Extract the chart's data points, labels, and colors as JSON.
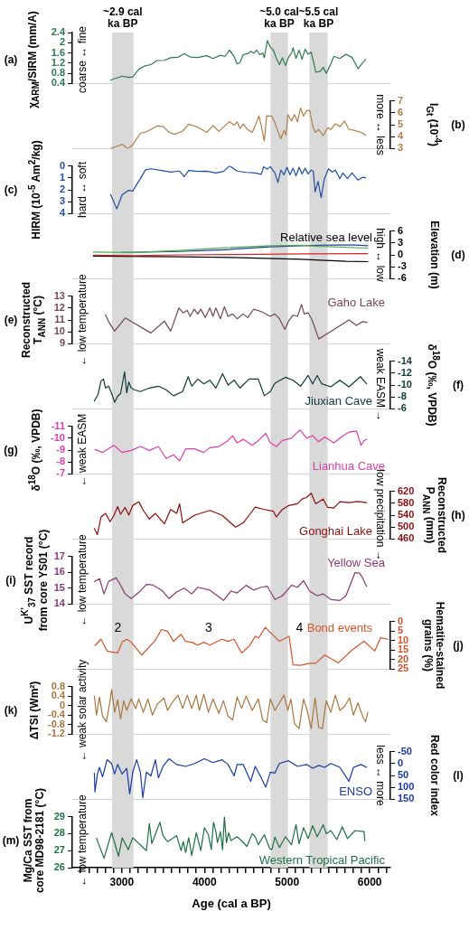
{
  "chart_data": [
    {
      "type": "line",
      "xlim": [
        2400,
        6250
      ],
      "tick_labels": "y",
      "ylabel": "χ$_{ARM}$/SIRM (mm/A)",
      "annotations": [
        "(a)",
        "coarse ↔ fine"
      ],
      "ylim": [
        0.4,
        2.4
      ],
      "yticks": [
        0.4,
        0.8,
        1.2,
        1.6,
        2,
        2.4
      ],
      "bands": [
        {
          "axis": "x",
          "from": 2880,
          "to": 3140,
          "label": "~2.9 cal ka BP",
          "color": "#d9d9d9"
        },
        {
          "axis": "x",
          "from": 4800,
          "to": 5010,
          "label": "~5.0 cal ka BP",
          "color": "#d9d9d9"
        },
        {
          "axis": "x",
          "from": 5270,
          "to": 5490,
          "label": "~5.5 cal ka BP",
          "color": "#d9d9d9"
        }
      ],
      "series": [
        {
          "color": "#2a7a50",
          "x": [
            2865,
            3004,
            3077,
            3132,
            3205,
            3278,
            3351,
            3425,
            3516,
            3590,
            3680,
            3754,
            3827,
            3919,
            4028,
            4102,
            4193,
            4248,
            4303,
            4358,
            4395,
            4431,
            4468,
            4523,
            4559,
            4596,
            4633,
            4669,
            4706,
            4724,
            4761,
            4797,
            4834,
            4870,
            4907,
            4943,
            4980,
            5017,
            5053,
            5072,
            5108,
            5145,
            5181,
            5218,
            5254,
            5291,
            5327,
            5346,
            5401,
            5437,
            5474,
            5529,
            5566,
            5639,
            5712,
            5785,
            5858,
            5895,
            5950
          ],
          "values": [
            0.54,
            0.69,
            0.64,
            0.66,
            0.96,
            1.09,
            1.14,
            1.3,
            1.31,
            1.41,
            1.43,
            1.57,
            1.44,
            1.42,
            1.49,
            1.38,
            1.51,
            1.46,
            1.71,
            1.46,
            1.17,
            1.23,
            1.53,
            1.57,
            1.66,
            1.59,
            1.71,
            1.53,
            1.59,
            1.41,
            2.09,
            1.83,
            1.71,
            1.39,
            1.14,
            1.41,
            1.11,
            1.43,
            1.59,
            1.8,
            1.39,
            1.71,
            1.35,
            1.75,
            1.55,
            1.63,
            1.15,
            0.84,
            0.88,
            1.03,
            0.8,
            1.17,
            1.47,
            1.38,
            1.55,
            1.43,
            0.98,
            1.14,
            1.34
          ]
        }
      ]
    },
    {
      "type": "line",
      "xlim": [
        2400,
        6250
      ],
      "tick_labels": "y2",
      "y2label": "I$_{Gt}$ (10$^{-4}$)",
      "annotations": [
        "(b)",
        "more ↔ less"
      ],
      "y2lim": [
        3,
        7
      ],
      "y2ticks": [
        3,
        4,
        5,
        6,
        7
      ],
      "bands": [
        {
          "axis": "x",
          "from": 2880,
          "to": 3140,
          "color": "#d9d9d9"
        },
        {
          "axis": "x",
          "from": 4800,
          "to": 5010,
          "color": "#d9d9d9"
        },
        {
          "axis": "x",
          "from": 5270,
          "to": 5490,
          "color": "#d9d9d9"
        }
      ],
      "series": [
        {
          "color": "#b07d45",
          "axis": "y2",
          "x": [
            2865,
            3004,
            3070,
            3132,
            3224,
            3297,
            3425,
            3498,
            3571,
            3644,
            3736,
            3809,
            3919,
            4028,
            4102,
            4175,
            4303,
            4358,
            4395,
            4431,
            4468,
            4523,
            4578,
            4633,
            4658,
            4687,
            4724,
            4753,
            4816,
            4852,
            4889,
            4925,
            4962,
            4987,
            5009,
            5053,
            5090,
            5126,
            5163,
            5199,
            5236,
            5273,
            5309,
            5339,
            5382,
            5437,
            5492,
            5529,
            5584,
            5639,
            5694,
            5749,
            5822,
            5895,
            5950
          ],
          "values": [
            3.0,
            3.35,
            3.0,
            3.32,
            4.28,
            4.41,
            4.89,
            4.86,
            4.36,
            4.2,
            4.47,
            5.05,
            4.79,
            4.36,
            4.92,
            4.44,
            5.27,
            4.95,
            5.24,
            4.68,
            5.05,
            4.6,
            4.36,
            5.24,
            5.75,
            4.92,
            3.64,
            5.75,
            5.72,
            5.16,
            4.44,
            3.83,
            4.52,
            4.12,
            5.85,
            5.32,
            5.85,
            5.24,
            6.39,
            5.72,
            6.17,
            6.2,
            4.92,
            4.36,
            4.6,
            4.09,
            4.76,
            4.6,
            5.08,
            4.84,
            5.32,
            4.6,
            4.52,
            4.36,
            4.12
          ]
        }
      ]
    },
    {
      "type": "line",
      "xlim": [
        2400,
        6250
      ],
      "tick_labels": "y",
      "ylabel": "HIRM (10$^{-5}$ Am$^{2}$/kg)",
      "annotations": [
        "(c)",
        "hard ↔ soft"
      ],
      "ylim": [
        4,
        0
      ],
      "yticks": [
        0,
        1,
        2,
        3,
        4
      ],
      "bands": [
        {
          "axis": "x",
          "from": 2880,
          "to": 3140,
          "color": "#d9d9d9"
        },
        {
          "axis": "x",
          "from": 4800,
          "to": 5010,
          "color": "#d9d9d9"
        },
        {
          "axis": "x",
          "from": 5270,
          "to": 5490,
          "color": "#d9d9d9"
        }
      ],
      "series": [
        {
          "color": "#1f4fa0",
          "x": [
            2865,
            2938,
            3004,
            3077,
            3132,
            3224,
            3286,
            3351,
            3480,
            3590,
            3699,
            3754,
            3809,
            3919,
            4028,
            4138,
            4230,
            4303,
            4395,
            4504,
            4614,
            4687,
            4717,
            4761,
            4797,
            4852,
            4889,
            4925,
            4962,
            4998,
            5035,
            5072,
            5108,
            5145,
            5181,
            5218,
            5254,
            5291,
            5317,
            5339,
            5375,
            5412,
            5449,
            5500,
            5547,
            5584,
            5639,
            5675,
            5730,
            5785,
            5858,
            5913,
            5950
          ],
          "values": [
            2.41,
            3.6,
            2.41,
            2.05,
            2.1,
            1.06,
            0.32,
            0.24,
            0.38,
            0.51,
            0.43,
            0.9,
            0.38,
            0.46,
            0.44,
            0.59,
            0.46,
            0,
            0.43,
            0.54,
            0.59,
            0.7,
            0.06,
            0.27,
            0.06,
            0.59,
            1.38,
            0.35,
            0.75,
            0.11,
            0.75,
            0.19,
            0.83,
            0.11,
            0.67,
            0.19,
            0.67,
            0.35,
            0.43,
            2.17,
            1.3,
            2.65,
            1.14,
            0.24,
            0.51,
            0.35,
            1.06,
            0.59,
            1.06,
            0.59,
            1.19,
            0.95,
            0.98
          ]
        }
      ]
    },
    {
      "type": "line",
      "xlim": [
        2400,
        6250
      ],
      "tick_labels": "y2",
      "y2label": "Elevation (m)",
      "annotations": [
        "(d)",
        "high ↔ low"
      ],
      "legend_title": "Relative sea level",
      "y2lim": [
        -6,
        6
      ],
      "y2ticks": [
        -6,
        -3,
        0,
        3,
        6
      ],
      "bands": [
        {
          "axis": "x",
          "from": 2880,
          "to": 3140,
          "color": "#d9d9d9"
        },
        {
          "axis": "x",
          "from": 4800,
          "to": 5010,
          "color": "#d9d9d9"
        },
        {
          "axis": "x",
          "from": 5270,
          "to": 5490,
          "color": "#d9d9d9"
        }
      ],
      "series": [
        {
          "color": "#4caf50",
          "axis": "y2",
          "x": [
            2656,
            3150,
            3699,
            4248,
            4797,
            5163,
            5346,
            5976
          ],
          "values": [
            0.7,
            0.6,
            1.1,
            1.8,
            2.3,
            2.4,
            2.2,
            1.7
          ]
        },
        {
          "color": "#1f3f99",
          "axis": "y2",
          "x": [
            3004,
            3699,
            4248,
            4797,
            5163,
            5529,
            5822,
            5976
          ],
          "values": [
            0.6,
            0.85,
            1.3,
            2.0,
            2.3,
            2.5,
            2.45,
            2.3
          ]
        },
        {
          "color": "#d62728",
          "axis": "y2",
          "x": [
            2656,
            3150,
            3699,
            4431,
            5163,
            5976
          ],
          "values": [
            -0.1,
            -0.2,
            0,
            0.1,
            0.25,
            0.3
          ]
        },
        {
          "color": "#000000",
          "axis": "y2",
          "x": [
            2656,
            3699,
            4431,
            5163,
            5712,
            5976
          ],
          "values": [
            -0.3,
            -0.5,
            -0.7,
            -1.1,
            -1.6,
            -1.7
          ]
        }
      ]
    },
    {
      "type": "line",
      "xlim": [
        2400,
        6250
      ],
      "tick_labels": "y",
      "ylabel": "Reconstructed\nT$_{ANN}$ (°C)",
      "annotations": [
        "(e)",
        "← low temperature"
      ],
      "ylim": [
        9,
        13
      ],
      "yticks": [
        9,
        10,
        11,
        12,
        13
      ],
      "bands": [
        {
          "axis": "x",
          "from": 2880,
          "to": 3140,
          "color": "#d9d9d9"
        },
        {
          "axis": "x",
          "from": 4800,
          "to": 5010,
          "color": "#d9d9d9"
        },
        {
          "axis": "x",
          "from": 5270,
          "to": 5490,
          "color": "#d9d9d9"
        }
      ],
      "series": [
        {
          "name": "Gaho Lake",
          "color": "#74484f",
          "x": [
            2802,
            2839,
            2912,
            3040,
            3351,
            3516,
            3590,
            3691,
            3743,
            3791,
            3827,
            3875,
            3919,
            3955,
            4010,
            4065,
            4102,
            4138,
            4193,
            4241,
            4285,
            4340,
            4395,
            4468,
            4523,
            4596,
            4687,
            4797,
            4852,
            4907,
            4973,
            5017,
            5072,
            5126,
            5174,
            5207,
            5254,
            5302,
            5383,
            5511,
            5749,
            5840,
            5913,
            5968
          ],
          "values": [
            11.43,
            10.86,
            10.06,
            11.17,
            9.91,
            10.9,
            10.06,
            12.0,
            11.6,
            11.8,
            11.3,
            11.9,
            11.5,
            11.9,
            11.2,
            12.0,
            11.3,
            12.0,
            11.1,
            12.1,
            11.3,
            11.5,
            11.1,
            11.5,
            11.2,
            11.9,
            11.7,
            11.3,
            11.5,
            11.1,
            10.2,
            10.9,
            11.4,
            11.3,
            12.3,
            11.5,
            11.6,
            11.0,
            9.4,
            9.96,
            11.0,
            10.54,
            10.86,
            10.8
          ]
        }
      ]
    },
    {
      "type": "line",
      "xlim": [
        2400,
        6250
      ],
      "tick_labels": "y2",
      "y2label": "δ$^{18}$O (‰, VPDB)",
      "annotations": [
        "(f)",
        "weak EASM →"
      ],
      "y2lim": [
        -6,
        -14
      ],
      "y2ticks": [
        -14,
        -12,
        -10,
        -8,
        -6
      ],
      "bands": [
        {
          "axis": "x",
          "from": 2880,
          "to": 3140,
          "color": "#d9d9d9"
        },
        {
          "axis": "x",
          "from": 4800,
          "to": 5010,
          "color": "#d9d9d9"
        },
        {
          "axis": "x",
          "from": 5270,
          "to": 5490,
          "color": "#d9d9d9"
        }
      ],
      "series": [
        {
          "name": "Jiuxian Cave",
          "color": "#0f3b36",
          "axis": "y2",
          "x": [
            2667,
            2711,
            2748,
            2777,
            2802,
            2839,
            2876,
            2912,
            2949,
            2985,
            3033,
            3059,
            3084,
            3113,
            3150,
            3224,
            3333,
            3443,
            3535,
            3626,
            3736,
            3802,
            3846,
            3919,
            3992,
            4065,
            4138,
            4219,
            4285,
            4358,
            4431,
            4541,
            4651,
            4724,
            4797,
            4852,
            4980,
            5072,
            5163,
            5254,
            5309,
            5364,
            5419,
            5529,
            5639,
            5749,
            5888,
            5961
          ],
          "values": [
            -7.3,
            -8.4,
            -10.7,
            -11.0,
            -9.5,
            -9.8,
            -8.6,
            -7.1,
            -8.1,
            -8.6,
            -12.2,
            -8.7,
            -10.5,
            -9.5,
            -9.2,
            -8.9,
            -9.5,
            -9.8,
            -9.2,
            -8.2,
            -8.9,
            -11.4,
            -9.8,
            -11.0,
            -10.2,
            -10.8,
            -9.5,
            -11.9,
            -10.0,
            -10.8,
            -9.5,
            -11.0,
            -11.0,
            -8.2,
            -8.9,
            -10.3,
            -11.3,
            -10.8,
            -9.8,
            -11.6,
            -10.2,
            -11.6,
            -10.2,
            -9.7,
            -10.8,
            -9.7,
            -11.4,
            -10.2
          ]
        }
      ]
    },
    {
      "type": "line",
      "xlim": [
        2400,
        6250
      ],
      "tick_labels": "y",
      "ylabel": "δ$^{18}$O (‰, VPDB)",
      "annotations": [
        "(g)",
        "← weak EASM"
      ],
      "ylim": [
        -7,
        -11
      ],
      "yticks": [
        -11,
        -10,
        -9,
        -8,
        -7
      ],
      "bands": [
        {
          "axis": "x",
          "from": 2880,
          "to": 3140,
          "color": "#d9d9d9"
        },
        {
          "axis": "x",
          "from": 4800,
          "to": 5010,
          "color": "#d9d9d9"
        },
        {
          "axis": "x",
          "from": 5270,
          "to": 5490,
          "color": "#d9d9d9"
        }
      ],
      "series": [
        {
          "name": "Lianhua Cave",
          "color": "#d83fae",
          "x": [
            2674,
            2766,
            2901,
            3004,
            3113,
            3224,
            3333,
            3443,
            3535,
            3626,
            3699,
            3772,
            3882,
            3992,
            4065,
            4175,
            4285,
            4340,
            4395,
            4468,
            4578,
            4651,
            4742,
            4797,
            4870,
            4943,
            5053,
            5156,
            5236,
            5309,
            5382,
            5456,
            5566,
            5675,
            5749,
            5840,
            5895,
            5932,
            5961
          ],
          "values": [
            -9.05,
            -8.8,
            -9.4,
            -8.8,
            -8.97,
            -9.3,
            -8.97,
            -9.3,
            -8.3,
            -8.6,
            -8.1,
            -9.1,
            -9.1,
            -8.8,
            -9.2,
            -9.3,
            -9.8,
            -10.2,
            -9.6,
            -9.9,
            -9.4,
            -9.8,
            -10.4,
            -9.6,
            -9.3,
            -9.8,
            -10.0,
            -10.7,
            -10.0,
            -10.2,
            -9.7,
            -10.1,
            -9.6,
            -10.2,
            -10.5,
            -10.6,
            -9.4,
            -9.8,
            -9.9
          ]
        }
      ]
    },
    {
      "type": "line",
      "xlim": [
        2400,
        6250
      ],
      "tick_labels": "y2",
      "y2label": "Reconstructed\nP$_{ANN}$ (mm)",
      "annotations": [
        "(h)",
        "low precipitation →"
      ],
      "y2lim": [
        460,
        620
      ],
      "y2ticks": [
        460,
        500,
        540,
        580,
        620
      ],
      "bands": [
        {
          "axis": "x",
          "from": 2880,
          "to": 3140,
          "color": "#d9d9d9"
        },
        {
          "axis": "x",
          "from": 4800,
          "to": 5010,
          "color": "#d9d9d9"
        },
        {
          "axis": "x",
          "from": 5270,
          "to": 5490,
          "color": "#d9d9d9"
        }
      ],
      "series": [
        {
          "name": "Gonghai Lake",
          "color": "#8b0f0f",
          "axis": "y2",
          "x": [
            2667,
            2704,
            2748,
            2802,
            2857,
            2901,
            2949,
            2985,
            3040,
            3084,
            3132,
            3205,
            3260,
            3333,
            3406,
            3516,
            3590,
            3663,
            3699,
            3736,
            3882,
            4065,
            4211,
            4376,
            4468,
            4541,
            4614,
            4724,
            4834,
            4870,
            4943,
            5017,
            5126,
            5181,
            5236,
            5291,
            5346,
            5437,
            5492,
            5566,
            5639,
            5749,
            5858,
            5961
          ],
          "values": [
            495,
            475,
            534,
            546,
            518,
            537,
            569,
            543,
            566,
            540,
            573,
            585,
            556,
            527,
            546,
            511,
            559,
            546,
            578,
            514,
            540,
            556,
            540,
            500,
            514,
            540,
            567,
            559,
            553,
            534,
            559,
            572,
            578,
            594,
            599,
            614,
            578,
            594,
            566,
            564,
            585,
            582,
            586,
            582
          ]
        }
      ]
    },
    {
      "type": "line",
      "xlim": [
        2400,
        6250
      ],
      "tick_labels": "y",
      "ylabel": "U$^{K'}$$_{37}$ SST record\nfrom core YS01 (°C)",
      "annotations": [
        "(i)",
        "← low temperature"
      ],
      "ylim": [
        14,
        17
      ],
      "yticks": [
        14,
        15,
        16,
        17
      ],
      "bands": [
        {
          "axis": "x",
          "from": 2880,
          "to": 3140,
          "color": "#d9d9d9"
        },
        {
          "axis": "x",
          "from": 4800,
          "to": 5010,
          "color": "#d9d9d9"
        },
        {
          "axis": "x",
          "from": 5270,
          "to": 5490,
          "color": "#d9d9d9"
        }
      ],
      "series": [
        {
          "name": "Yellow Sea",
          "color": "#8a3a70",
          "x": [
            2667,
            2729,
            2784,
            2839,
            2930,
            2967,
            3040,
            3113,
            3224,
            3297,
            3370,
            3480,
            3571,
            3663,
            3754,
            3846,
            3919,
            4065,
            4230,
            4321,
            4395,
            4504,
            4596,
            4687,
            4761,
            4852,
            4943,
            5053,
            5126,
            5199,
            5273,
            5364,
            5437,
            5529,
            5639,
            5712,
            5822,
            5877,
            5913,
            5961
          ],
          "values": [
            15.42,
            15.6,
            14.64,
            15.42,
            15.65,
            15.36,
            14.64,
            14.35,
            14.82,
            15.24,
            15.21,
            14.88,
            14.35,
            14.76,
            15.0,
            14.64,
            15.06,
            14.88,
            14.23,
            14.82,
            14.7,
            15.18,
            14.88,
            15.06,
            15.12,
            14.29,
            14.52,
            15.18,
            15.06,
            15.48,
            14.82,
            14.52,
            14.64,
            14.29,
            14.23,
            14.52,
            15.98,
            15.95,
            15.65,
            15.12
          ]
        }
      ]
    },
    {
      "type": "line",
      "xlim": [
        2400,
        6250
      ],
      "tick_labels": "y2",
      "y2label": "Hematite-stained\ngrains (%)",
      "annotations": [
        "(j)",
        "2",
        "3",
        "4"
      ],
      "y2lim": [
        25,
        0
      ],
      "y2ticks": [
        0,
        5,
        10,
        15,
        20,
        25
      ],
      "bands": [
        {
          "axis": "x",
          "from": 2880,
          "to": 3140,
          "color": "#d9d9d9"
        },
        {
          "axis": "x",
          "from": 4800,
          "to": 5010,
          "color": "#d9d9d9"
        },
        {
          "axis": "x",
          "from": 5270,
          "to": 5490,
          "color": "#d9d9d9"
        }
      ],
      "series": [
        {
          "name": "Bond events",
          "color": "#d2552a",
          "axis": "y2",
          "x": [
            2674,
            2748,
            2821,
            2876,
            2949,
            3004,
            3059,
            3113,
            3242,
            3406,
            3480,
            3553,
            3626,
            3717,
            3772,
            3846,
            3919,
            3992,
            4065,
            4211,
            4285,
            4358,
            4450,
            4541,
            4614,
            4658,
            4735,
            4907,
            5024,
            5072,
            5163,
            5273,
            5346,
            5456,
            5621,
            5785,
            5932,
            6060,
            6133,
            6225
          ],
          "values": [
            12.6,
            9.3,
            15.5,
            16.0,
            16.5,
            10.9,
            9.3,
            10.9,
            17.6,
            9.8,
            4.2,
            5.2,
            10.4,
            6.8,
            10.4,
            10.9,
            12.4,
            10.9,
            12.4,
            9.3,
            10.4,
            9.3,
            16.5,
            12.9,
            7.8,
            8.6,
            3.1,
            10.4,
            7.8,
            22.7,
            23.0,
            21.9,
            21.9,
            17.6,
            21.7,
            15.0,
            10.4,
            15.5,
            8.5,
            9.3
          ]
        }
      ]
    },
    {
      "type": "line",
      "xlim": [
        2400,
        6250
      ],
      "tick_labels": "y",
      "ylabel": "ΔTSI (Wm²)",
      "annotations": [
        "(k)",
        "← weak solar activity"
      ],
      "ylim": [
        -1.2,
        0.8
      ],
      "yticks": [
        -1.2,
        -0.8,
        -0.4,
        0,
        0.4,
        0.8
      ],
      "bands": [
        {
          "axis": "x",
          "from": 2880,
          "to": 3140,
          "color": "#d9d9d9"
        },
        {
          "axis": "x",
          "from": 4800,
          "to": 5010,
          "color": "#d9d9d9"
        },
        {
          "axis": "x",
          "from": 5270,
          "to": 5490,
          "color": "#d9d9d9"
        }
      ],
      "series": [
        {
          "color": "#a8763e",
          "x": [
            2667,
            2693,
            2729,
            2766,
            2813,
            2850,
            2876,
            2912,
            2949,
            2985,
            3022,
            3059,
            3113,
            3168,
            3205,
            3260,
            3315,
            3370,
            3425,
            3509,
            3553,
            3608,
            3680,
            3736,
            3791,
            3846,
            3901,
            3937,
            3992,
            4047,
            4102,
            4175,
            4230,
            4285,
            4340,
            4395,
            4450,
            4504,
            4578,
            4651,
            4706,
            4753,
            4797,
            4852,
            4907,
            4962,
            5009,
            5046,
            5090,
            5145,
            5199,
            5243,
            5291,
            5339,
            5383,
            5426,
            5474,
            5529,
            5584,
            5639,
            5694,
            5756,
            5803,
            5858,
            5913,
            5950,
            5976
          ],
          "values": [
            0.4,
            -0.4,
            0.36,
            -0.44,
            -0.68,
            0.04,
            0.68,
            -0.28,
            0.24,
            -0.56,
            0.2,
            -0.2,
            0.28,
            -0.12,
            0.28,
            -0.28,
            0.28,
            -0.4,
            0.04,
            0.32,
            -0.2,
            0.12,
            0.44,
            -0.12,
            0.44,
            -0.12,
            0.44,
            -0.2,
            0.48,
            -0.28,
            0.28,
            -0.32,
            0.2,
            -0.44,
            -0.6,
            0.36,
            -0.12,
            0.4,
            -0.2,
            0.28,
            -0.6,
            -0.72,
            0.28,
            -0.2,
            0.12,
            0.44,
            -0.2,
            0.28,
            -0.76,
            -0.96,
            0.28,
            -0.2,
            -0.96,
            0.32,
            -0.92,
            -0.96,
            0.2,
            -0.28,
            0.44,
            -0.2,
            -0.04,
            0.32,
            -0.4,
            0.12,
            -0.44,
            -0.68,
            -0.28
          ]
        }
      ]
    },
    {
      "type": "line",
      "xlim": [
        2400,
        6250
      ],
      "tick_labels": "y2",
      "y2label": "Red color index",
      "annotations": [
        "(l)",
        "less ↔ more"
      ],
      "y2lim": [
        150,
        -50
      ],
      "y2ticks": [
        -50,
        0,
        50,
        100,
        150
      ],
      "bands": [
        {
          "axis": "x",
          "from": 2880,
          "to": 3140,
          "color": "#d9d9d9"
        },
        {
          "axis": "x",
          "from": 4800,
          "to": 5010,
          "color": "#d9d9d9"
        },
        {
          "axis": "x",
          "from": 5270,
          "to": 5490,
          "color": "#d9d9d9"
        }
      ],
      "series": [
        {
          "name": "ENSO",
          "color": "#1a3aa0",
          "axis": "y2",
          "x": [
            2667,
            2674,
            2704,
            2729,
            2766,
            2821,
            2876,
            2912,
            2949,
            3004,
            3059,
            3095,
            3132,
            3179,
            3224,
            3253,
            3297,
            3351,
            3406,
            3443,
            3498,
            3571,
            3663,
            3772,
            3882,
            3999,
            4102,
            4211,
            4285,
            4358,
            4395,
            4468,
            4559,
            4614,
            4687,
            4742,
            4797,
            4852,
            4907,
            5017,
            5126,
            5236,
            5309,
            5383,
            5456,
            5529,
            5639,
            5749,
            5803,
            5895,
            5961
          ],
          "values": [
            40,
            119,
            44,
            16,
            56,
            -16,
            0,
            44,
            4,
            44,
            20,
            127,
            36,
            -16,
            36,
            143,
            36,
            52,
            -16,
            60,
            12,
            -20,
            4,
            12,
            0,
            -20,
            -4,
            -16,
            4,
            52,
            4,
            4,
            75,
            12,
            60,
            99,
            36,
            40,
            0,
            -12,
            12,
            4,
            20,
            8,
            16,
            0,
            16,
            75,
            16,
            4,
            16
          ]
        }
      ]
    },
    {
      "type": "line",
      "xlim": [
        2400,
        6250
      ],
      "xlabel": "Age (cal a BP)",
      "xticks": [
        {
          "value": 2500,
          "label": null
        },
        {
          "value": 2600,
          "label": null
        },
        {
          "value": 2700,
          "label": null
        },
        {
          "value": 2800,
          "label": null
        },
        {
          "value": 2900,
          "label": null
        },
        3000,
        {
          "value": 3100,
          "label": null
        },
        {
          "value": 3200,
          "label": null
        },
        {
          "value": 3300,
          "label": null
        },
        {
          "value": 3400,
          "label": null
        },
        {
          "value": 3500,
          "label": null
        },
        {
          "value": 3600,
          "label": null
        },
        {
          "value": 3700,
          "label": null
        },
        {
          "value": 3800,
          "label": null
        },
        {
          "value": 3900,
          "label": null
        },
        4000,
        {
          "value": 4100,
          "label": null
        },
        {
          "value": 4200,
          "label": null
        },
        {
          "value": 4300,
          "label": null
        },
        {
          "value": 4400,
          "label": null
        },
        {
          "value": 4500,
          "label": null
        },
        {
          "value": 4600,
          "label": null
        },
        {
          "value": 4700,
          "label": null
        },
        {
          "value": 4800,
          "label": null
        },
        {
          "value": 4900,
          "label": null
        },
        5000,
        {
          "value": 5100,
          "label": null
        },
        {
          "value": 5200,
          "label": null
        },
        {
          "value": 5300,
          "label": null
        },
        {
          "value": 5400,
          "label": null
        },
        {
          "value": 5500,
          "label": null
        },
        {
          "value": 5600,
          "label": null
        },
        {
          "value": 5700,
          "label": null
        },
        {
          "value": 5800,
          "label": null
        },
        {
          "value": 5900,
          "label": null
        },
        6000,
        {
          "value": 6100,
          "label": null
        },
        {
          "value": 6200,
          "label": null
        }
      ],
      "ylabel": "Mg/Ca SST from\ncore MD98-2181 (°C)",
      "annotations": [
        "(m)",
        "← low temperature"
      ],
      "ylim": [
        26,
        29
      ],
      "yticks": [
        26,
        27,
        28,
        29
      ],
      "bands": [
        {
          "axis": "x",
          "from": 2880,
          "to": 3140,
          "color": "#d9d9d9"
        },
        {
          "axis": "x",
          "from": 4800,
          "to": 5010,
          "color": "#d9d9d9"
        },
        {
          "axis": "x",
          "from": 5270,
          "to": 5490,
          "color": "#d9d9d9"
        }
      ],
      "series": [
        {
          "name": "Western Tropical Pacific",
          "color": "#1f7045",
          "x": [
            2693,
            2784,
            2876,
            2960,
            3004,
            3077,
            3132,
            3297,
            3333,
            3362,
            3461,
            3498,
            3553,
            3663,
            3717,
            3743,
            3772,
            3809,
            3846,
            3901,
            3955,
            3999,
            4047,
            4083,
            4109,
            4138,
            4157,
            4193,
            4219,
            4241,
            4266,
            4292,
            4321,
            4395,
            4461,
            4512,
            4578,
            4614,
            4651,
            4724,
            4790,
            4816,
            4852,
            4907,
            4980,
            5053,
            5108,
            5145,
            5199,
            5254,
            5309,
            5364,
            5437,
            5474,
            5529,
            5602,
            5668,
            5730,
            5822,
            5932,
            5939
          ],
          "values": [
            27.73,
            26.55,
            28.06,
            26.67,
            27.76,
            27.06,
            27.76,
            27.0,
            28.59,
            27.41,
            28.67,
            27.88,
            27.53,
            27.88,
            27.0,
            27.53,
            26.88,
            27.76,
            26.71,
            28.06,
            27.0,
            28.35,
            27.94,
            27.06,
            28.67,
            28.12,
            27.47,
            28.12,
            27.06,
            29.0,
            27.47,
            28.06,
            27.59,
            27.82,
            27.53,
            27.24,
            28.0,
            27.82,
            27.35,
            27.94,
            27.12,
            27.06,
            27.8,
            27.18,
            27.82,
            27.35,
            28.53,
            27.41,
            28.35,
            27.71,
            28.47,
            27.82,
            28.53,
            28.0,
            28.18,
            27.65,
            28.41,
            27.71,
            28.18,
            28.12,
            27.59
          ]
        }
      ]
    }
  ]
}
